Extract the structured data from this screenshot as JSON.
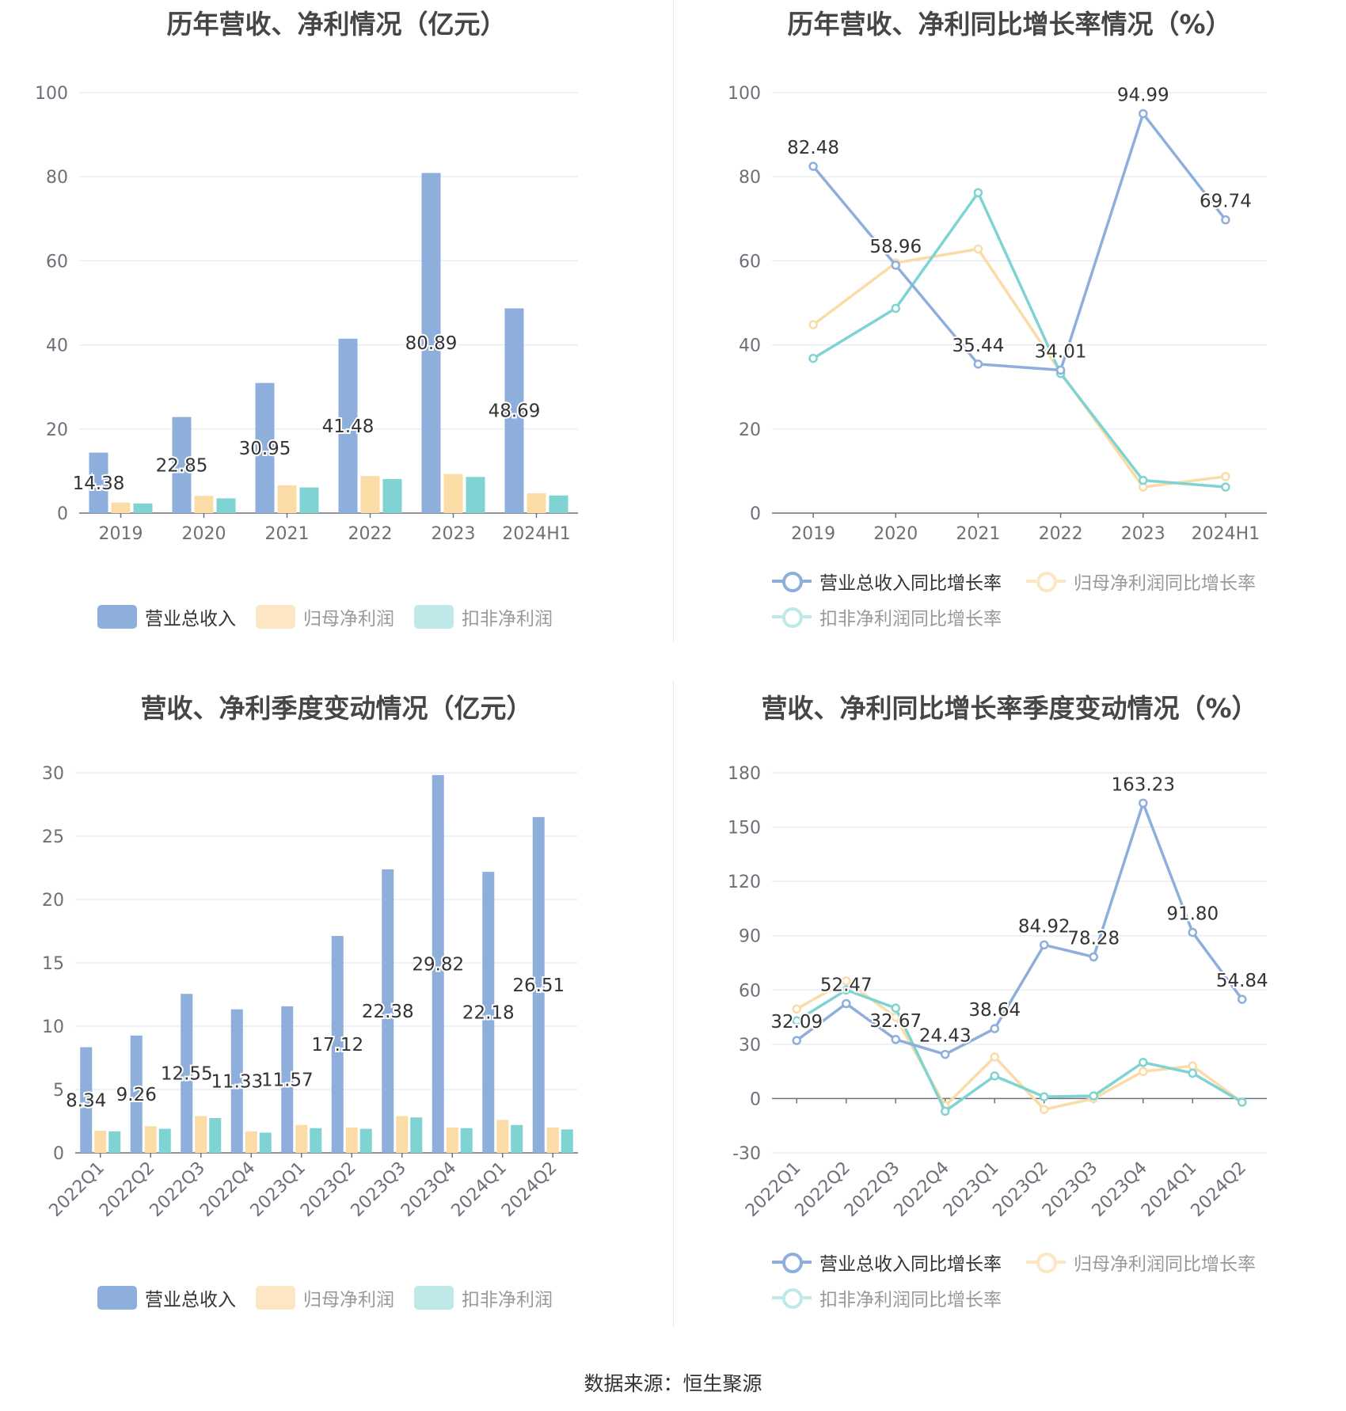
{
  "source": "数据来源：恒生聚源",
  "legends": {
    "bars": [
      "营业总收入",
      "归母净利润",
      "扣非净利润"
    ],
    "lines": [
      "营业总收入同比增长率",
      "归母净利润同比增长率",
      "扣非净利润同比增长率"
    ]
  },
  "colors": {
    "revenue": "#8eaedc",
    "netprofit": "#fbdba6",
    "deducted": "#7fd3d2",
    "grid": "#e3e8f2",
    "axis": "#6e7079"
  },
  "chart_data": [
    {
      "type": "bar",
      "title": "历年营收、净利情况（亿元）",
      "categories": [
        "2019",
        "2020",
        "2021",
        "2022",
        "2023",
        "2024H1"
      ],
      "ylim": [
        0,
        100
      ],
      "yticks": [
        0,
        20,
        40,
        60,
        80,
        100
      ],
      "series": [
        {
          "name": "营业总收入",
          "values": [
            14.38,
            22.85,
            30.95,
            41.48,
            80.89,
            48.69
          ],
          "labels": [
            "14.38",
            "22.85",
            "30.95",
            "41.48",
            "80.89",
            "48.69"
          ]
        },
        {
          "name": "归母净利润",
          "values": [
            2.5,
            4.1,
            6.6,
            8.8,
            9.3,
            4.7
          ]
        },
        {
          "name": "扣非净利润",
          "values": [
            2.3,
            3.5,
            6.1,
            8.1,
            8.6,
            4.2
          ]
        }
      ],
      "legend": "bottom",
      "grid": true
    },
    {
      "type": "line",
      "title": "历年营收、净利同比增长率情况（%）",
      "categories": [
        "2019",
        "2020",
        "2021",
        "2022",
        "2023",
        "2024H1"
      ],
      "ylim": [
        0,
        100
      ],
      "yticks": [
        0,
        20,
        40,
        60,
        80,
        100
      ],
      "series": [
        {
          "name": "营业总收入同比增长率",
          "values": [
            82.48,
            58.96,
            35.44,
            34.01,
            94.99,
            69.74
          ],
          "labels": [
            "82.48",
            "58.96",
            "35.44",
            "34.01",
            "94.99",
            "69.74"
          ]
        },
        {
          "name": "归母净利润同比增长率",
          "values": [
            44.8,
            59.5,
            62.8,
            33.5,
            6.2,
            8.7
          ]
        },
        {
          "name": "扣非净利润同比增长率",
          "values": [
            36.8,
            48.7,
            76.2,
            33.2,
            7.8,
            6.2
          ]
        }
      ],
      "legend": "bottom",
      "grid": true
    },
    {
      "type": "bar",
      "title": "营收、净利季度变动情况（亿元）",
      "categories": [
        "2022Q1",
        "2022Q2",
        "2022Q3",
        "2022Q4",
        "2023Q1",
        "2023Q2",
        "2023Q3",
        "2023Q4",
        "2024Q1",
        "2024Q2"
      ],
      "ylim": [
        0,
        30
      ],
      "yticks": [
        0,
        5,
        10,
        15,
        20,
        25,
        30
      ],
      "series": [
        {
          "name": "营业总收入",
          "values": [
            8.34,
            9.26,
            12.55,
            11.33,
            11.57,
            17.12,
            22.38,
            29.82,
            22.18,
            26.51
          ],
          "labels": [
            "8.34",
            "9.26",
            "12.55",
            "11.33",
            "11.57",
            "17.12",
            "22.38",
            "29.82",
            "22.18",
            "26.51"
          ]
        },
        {
          "name": "归母净利润",
          "values": [
            1.75,
            2.1,
            2.9,
            1.7,
            2.2,
            2.0,
            2.9,
            2.0,
            2.6,
            2.0
          ]
        },
        {
          "name": "扣非净利润",
          "values": [
            1.7,
            1.9,
            2.75,
            1.6,
            1.95,
            1.9,
            2.8,
            1.95,
            2.2,
            1.85
          ]
        }
      ],
      "legend": "bottom",
      "grid": true
    },
    {
      "type": "line",
      "title": "营收、净利同比增长率季度变动情况（%）",
      "categories": [
        "2022Q1",
        "2022Q2",
        "2022Q3",
        "2022Q4",
        "2023Q1",
        "2023Q2",
        "2023Q3",
        "2023Q4",
        "2024Q1",
        "2024Q2"
      ],
      "ylim": [
        -30,
        180
      ],
      "yticks": [
        -30,
        0,
        30,
        60,
        90,
        120,
        150,
        180
      ],
      "series": [
        {
          "name": "营业总收入同比增长率",
          "values": [
            32.09,
            52.47,
            32.67,
            24.43,
            38.64,
            84.92,
            78.28,
            163.23,
            91.8,
            54.84
          ],
          "labels": [
            "32.09",
            "52.47",
            "32.67",
            "24.43",
            "38.64",
            "84.92",
            "78.28",
            "163.23",
            "91.80",
            "54.84"
          ]
        },
        {
          "name": "归母净利润同比增长率",
          "values": [
            49.5,
            65.0,
            45.0,
            -4.0,
            23.0,
            -6.0,
            0.0,
            15.0,
            18.0,
            -2.0
          ]
        },
        {
          "name": "扣非净利润同比增长率",
          "values": [
            43.0,
            60.0,
            50.0,
            -7.0,
            12.5,
            1.0,
            1.5,
            20.0,
            14.0,
            -2.0
          ]
        }
      ],
      "legend": "bottom",
      "grid": true
    }
  ]
}
